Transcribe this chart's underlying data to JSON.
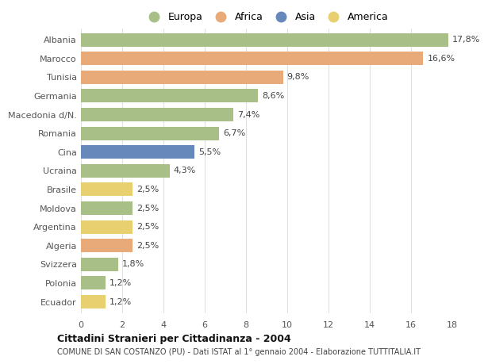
{
  "categories": [
    "Albania",
    "Marocco",
    "Tunisia",
    "Germania",
    "Macedonia d/N.",
    "Romania",
    "Cina",
    "Ucraina",
    "Brasile",
    "Moldova",
    "Argentina",
    "Algeria",
    "Svizzera",
    "Polonia",
    "Ecuador"
  ],
  "values": [
    17.8,
    16.6,
    9.8,
    8.6,
    7.4,
    6.7,
    5.5,
    4.3,
    2.5,
    2.5,
    2.5,
    2.5,
    1.8,
    1.2,
    1.2
  ],
  "labels": [
    "17,8%",
    "16,6%",
    "9,8%",
    "8,6%",
    "7,4%",
    "6,7%",
    "5,5%",
    "4,3%",
    "2,5%",
    "2,5%",
    "2,5%",
    "2,5%",
    "1,8%",
    "1,2%",
    "1,2%"
  ],
  "bar_colors": [
    "#a8c088",
    "#e8aa78",
    "#e8aa78",
    "#a8c088",
    "#a8c088",
    "#a8c088",
    "#6688bb",
    "#a8c088",
    "#e8d070",
    "#a8c088",
    "#e8d070",
    "#e8aa78",
    "#a8c088",
    "#a8c088",
    "#e8d070"
  ],
  "legend": {
    "Europa": "#a8c088",
    "Africa": "#e8aa78",
    "Asia": "#6688bb",
    "America": "#e8d070"
  },
  "xlim": [
    0,
    18
  ],
  "xticks": [
    0,
    2,
    4,
    6,
    8,
    10,
    12,
    14,
    16,
    18
  ],
  "title1": "Cittadini Stranieri per Cittadinanza - 2004",
  "title2": "COMUNE DI SAN COSTANZO (PU) - Dati ISTAT al 1° gennaio 2004 - Elaborazione TUTTITALIA.IT",
  "background_color": "#ffffff",
  "grid_color": "#e0e0e0",
  "bar_height": 0.72,
  "label_fontsize": 8,
  "tick_fontsize": 8,
  "ytick_fontsize": 8
}
